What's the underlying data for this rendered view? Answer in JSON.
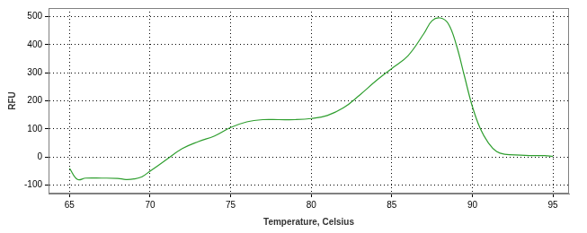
{
  "chart_data": {
    "type": "line",
    "x_label": "Temperature, Celsius",
    "y_label": "RFU",
    "x": [
      65,
      65.5,
      66,
      67,
      68,
      68.5,
      69,
      69.5,
      70,
      71,
      72,
      73,
      74,
      75,
      76,
      77,
      78,
      79,
      80,
      81,
      82,
      83,
      84,
      85,
      86,
      87,
      87.5,
      88,
      88.5,
      89,
      89.5,
      90,
      90.5,
      91,
      91.5,
      92,
      93,
      94,
      94.5,
      95
    ],
    "values": [
      -40,
      -80,
      -75,
      -75,
      -76,
      -80,
      -78,
      -70,
      -50,
      -10,
      30,
      55,
      75,
      105,
      125,
      133,
      133,
      133,
      137,
      148,
      175,
      220,
      270,
      315,
      360,
      440,
      485,
      495,
      475,
      400,
      290,
      180,
      100,
      50,
      20,
      10,
      7,
      5,
      5,
      2
    ],
    "color": "#2e9e2e",
    "xlim": [
      63.7,
      96
    ],
    "ylim": [
      -130,
      530
    ],
    "xticks": [
      65,
      70,
      75,
      80,
      85,
      90,
      95
    ],
    "yticks": [
      -100,
      0,
      100,
      200,
      300,
      400,
      500
    ],
    "grid": true
  }
}
